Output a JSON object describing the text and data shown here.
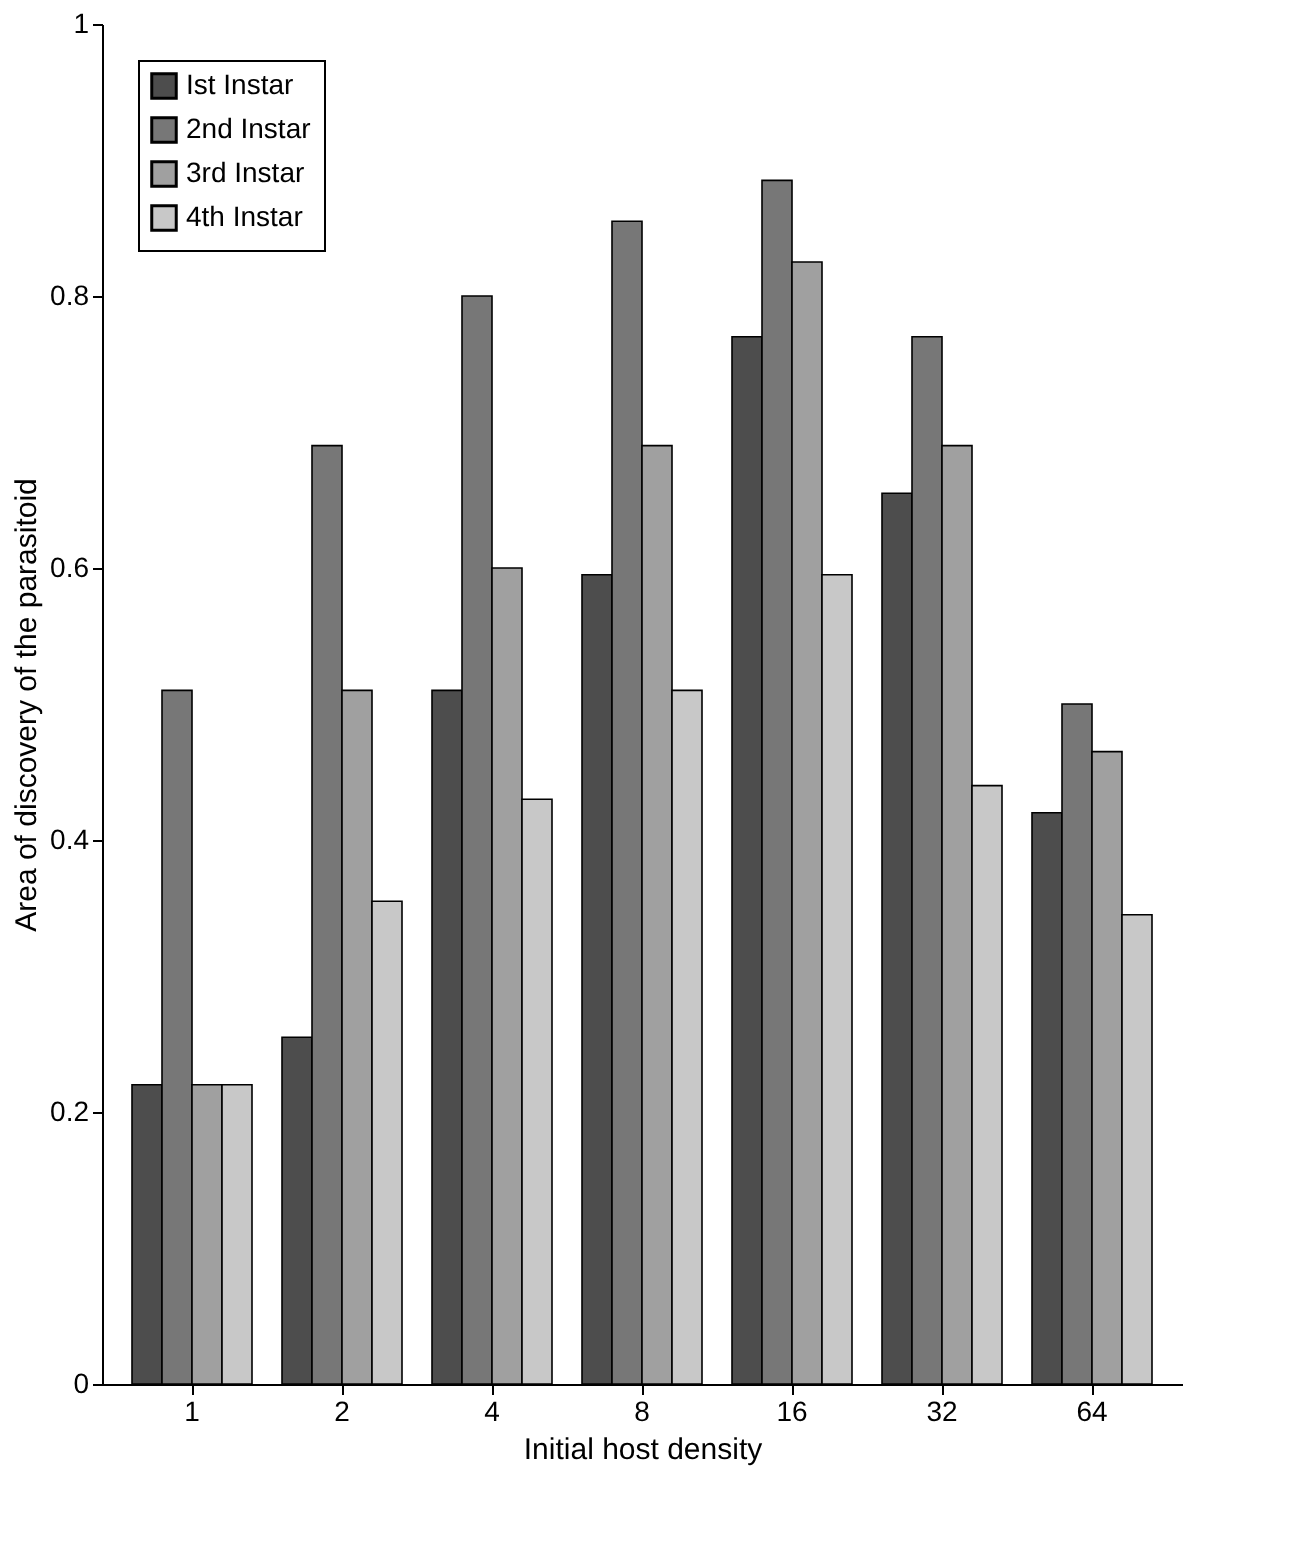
{
  "chart_data": {
    "type": "bar",
    "xlabel": "Initial host density",
    "ylabel": "Area of discovery of the parasitoid",
    "categories": [
      "1",
      "2",
      "4",
      "8",
      "16",
      "32",
      "64"
    ],
    "series": [
      {
        "name": "Ist Instar",
        "color": "#4d4d4d",
        "values": [
          0.22,
          0.255,
          0.51,
          0.595,
          0.77,
          0.655,
          0.42
        ]
      },
      {
        "name": "2nd Instar",
        "color": "#777777",
        "values": [
          0.51,
          0.69,
          0.8,
          0.855,
          0.885,
          0.77,
          0.5
        ]
      },
      {
        "name": "3rd Instar",
        "color": "#a0a0a0",
        "values": [
          0.22,
          0.51,
          0.6,
          0.69,
          0.825,
          0.69,
          0.465
        ]
      },
      {
        "name": "4th Instar",
        "color": "#c8c8c8",
        "values": [
          0.22,
          0.355,
          0.43,
          0.51,
          0.595,
          0.44,
          0.345
        ]
      }
    ],
    "ylim": [
      0,
      1
    ],
    "yticks": [
      0,
      0.2,
      0.4,
      0.6,
      0.8,
      1
    ],
    "grid": false,
    "legend": "top left"
  }
}
